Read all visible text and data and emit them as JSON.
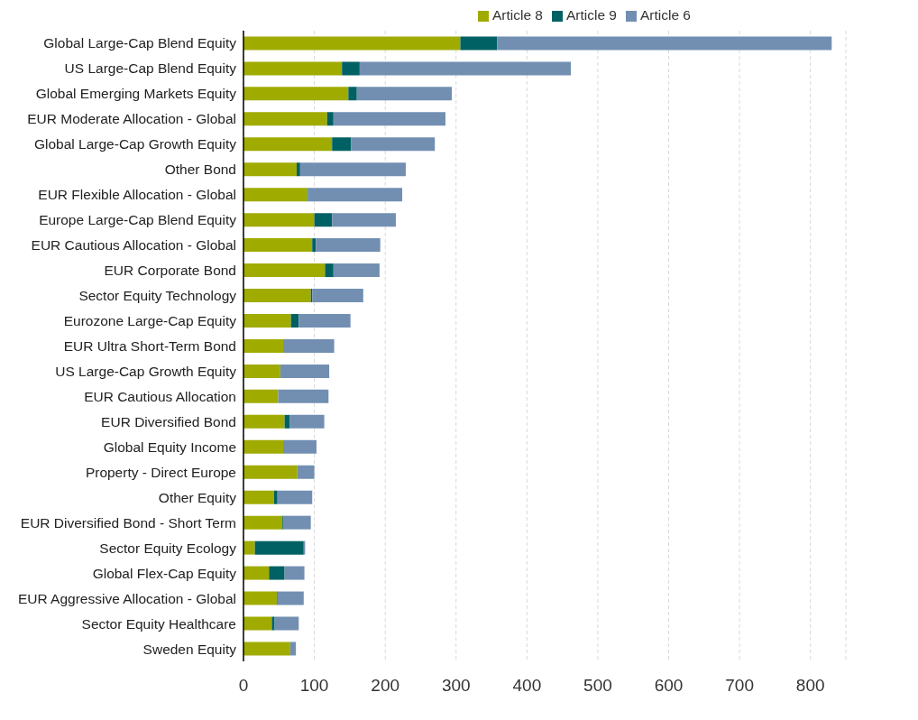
{
  "chart_data": {
    "type": "bar",
    "orientation": "horizontal",
    "stacked": true,
    "categories": [
      "Global Large-Cap Blend Equity",
      "US Large-Cap Blend Equity",
      "Global Emerging Markets Equity",
      "EUR Moderate Allocation - Global",
      "Global Large-Cap Growth Equity",
      "Other Bond",
      "EUR Flexible Allocation - Global",
      "Europe Large-Cap Blend Equity",
      "EUR Cautious Allocation - Global",
      "EUR Corporate Bond",
      "Sector Equity Technology",
      "Eurozone Large-Cap Equity",
      "EUR Ultra Short-Term Bond",
      "US Large-Cap Growth Equity",
      "EUR Cautious Allocation",
      "EUR Diversified Bond",
      "Global Equity Income",
      "Property - Direct Europe",
      "Other Equity",
      "EUR Diversified Bond - Short Term",
      "Sector Equity Ecology",
      "Global Flex-Cap Equity",
      "EUR Aggressive Allocation - Global",
      "Sector Equity Healthcare",
      "Sweden Equity"
    ],
    "series": [
      {
        "name": "Article 8",
        "color": "#a0ab00",
        "values": [
          306,
          139,
          148,
          118,
          125,
          75,
          90,
          100,
          97,
          115,
          95,
          67,
          56,
          52,
          49,
          58,
          56,
          76,
          43,
          55,
          16,
          36,
          47,
          40,
          66
        ]
      },
      {
        "name": "Article 9",
        "color": "#006164",
        "values": [
          52,
          25,
          12,
          9,
          27,
          5,
          1,
          25,
          5,
          12,
          2,
          11,
          0,
          0,
          0,
          7,
          0,
          0,
          5,
          1,
          69,
          22,
          1,
          4,
          0
        ]
      },
      {
        "name": "Article 6",
        "color": "#728fb2",
        "values": [
          472,
          298,
          134,
          158,
          118,
          149,
          133,
          90,
          91,
          65,
          72,
          73,
          72,
          69,
          71,
          49,
          47,
          24,
          49,
          39,
          2,
          28,
          37,
          34,
          8
        ]
      }
    ],
    "xlim": [
      0,
      850
    ],
    "xticks": [
      0,
      100,
      200,
      300,
      400,
      500,
      600,
      700,
      800
    ],
    "grid": "x",
    "legend": "top"
  }
}
